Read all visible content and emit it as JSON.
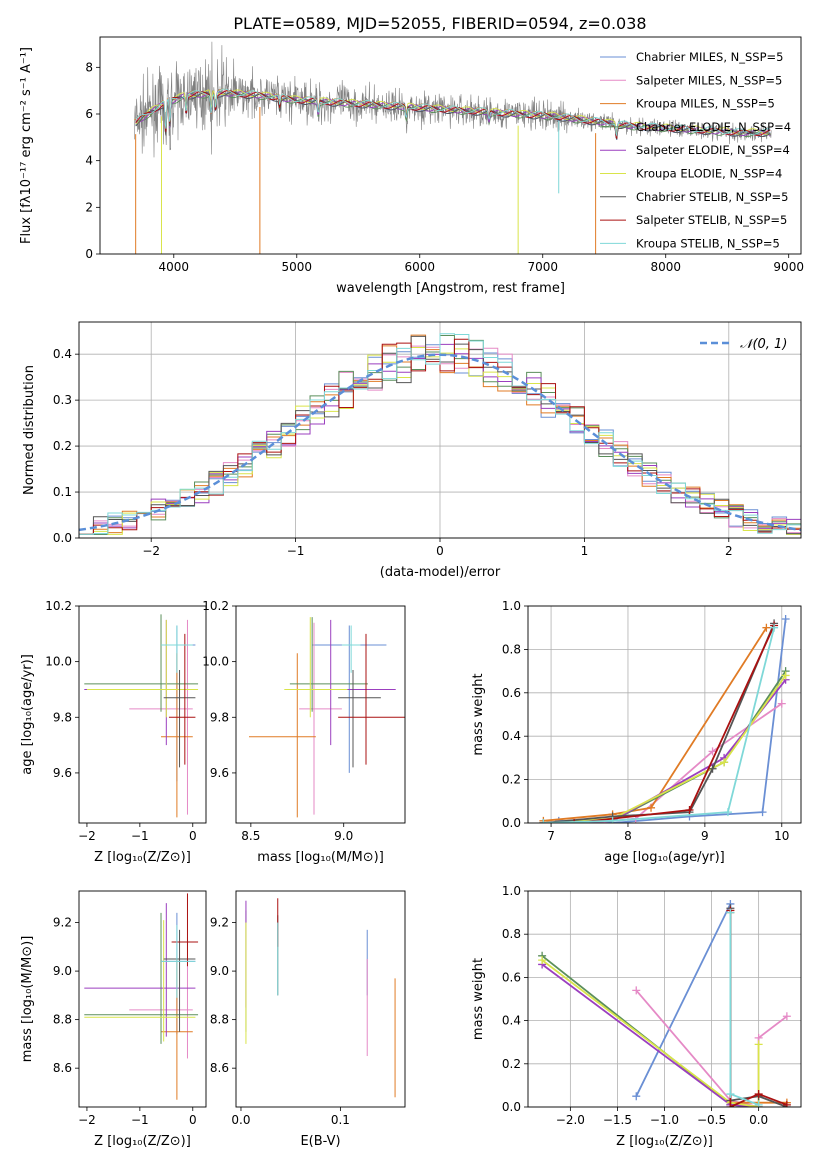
{
  "chart_data": [
    {
      "type": "line",
      "title": "PLATE=0589, MJD=52055, FIBERID=0594, z=0.038",
      "xlabel": "wavelength [Angstrom, rest frame]",
      "ylabel": "Flux [fλ10⁻¹⁷ erg cm⁻² s⁻¹ A⁻¹]",
      "xlim": [
        3400,
        9100
      ],
      "ylim": [
        0,
        9.3
      ],
      "xticks": [
        "4000",
        "5000",
        "6000",
        "7000",
        "8000",
        "9000"
      ],
      "yticks": [
        "0",
        "2",
        "4",
        "6",
        "8"
      ],
      "legend_position": "top-right",
      "series": [
        {
          "name": "Chabrier MILES, N_SSP=5",
          "color": "#6a8fd4"
        },
        {
          "name": "Salpeter MILES, N_SSP=5",
          "color": "#e58ac6"
        },
        {
          "name": "Kroupa MILES, N_SSP=5",
          "color": "#e07b25"
        },
        {
          "name": "Chabrier ELODIE, N_SSP=4",
          "color": "#5b8f5b"
        },
        {
          "name": "Salpeter ELODIE, N_SSP=4",
          "color": "#9b3fbf"
        },
        {
          "name": "Kroupa ELODIE, N_SSP=4",
          "color": "#d9e44a"
        },
        {
          "name": "Chabrier STELIB, N_SSP=5",
          "color": "#555555"
        },
        {
          "name": "Salpeter STELIB, N_SSP=5",
          "color": "#aa1111"
        },
        {
          "name": "Kroupa STELIB, N_SSP=5",
          "color": "#7fd8d8"
        }
      ],
      "data_color": "#808080",
      "continuum": {
        "x": [
          3680,
          3900,
          4100,
          4400,
          4700,
          5000,
          5300,
          5600,
          5900,
          6200,
          6500,
          6800,
          7100,
          7400,
          7700,
          8000,
          8300,
          8600,
          8850
        ],
        "y": [
          5.6,
          6.4,
          6.8,
          6.9,
          6.8,
          6.6,
          6.5,
          6.4,
          6.3,
          6.2,
          6.1,
          6.0,
          5.9,
          5.7,
          5.5,
          5.4,
          5.3,
          5.2,
          5.2
        ]
      }
    },
    {
      "type": "histogram",
      "xlabel": "(data-model)/error",
      "ylabel": "Normed distribution",
      "xlim": [
        -2.5,
        2.5
      ],
      "ylim": [
        0,
        0.47
      ],
      "xticks": [
        "−2",
        "−1",
        "0",
        "1",
        "2"
      ],
      "yticks": [
        "0.0",
        "0.1",
        "0.2",
        "0.3",
        "0.4"
      ],
      "bin_edges_start": -2.5,
      "bin_width": 0.1,
      "grid": true,
      "legend_position": "top-right",
      "reference_curve": {
        "name": "𝒩(0, 1)",
        "color": "#5b8fd8",
        "style": "dashed"
      }
    },
    {
      "type": "scatter",
      "xlabel": "Z [log₁₀(Z/Z⊙)]",
      "ylabel": "age  [log₁₀(age/yr)]",
      "xlim": [
        -2.15,
        0.25
      ],
      "ylim": [
        9.42,
        10.2
      ],
      "xticks": [
        "−2",
        "−1",
        "0"
      ],
      "yticks": [
        "9.6",
        "9.8",
        "10.0",
        "10.2"
      ],
      "errorbars": [
        {
          "color": "#6a8fd4",
          "x": -0.3,
          "xerr": [
            0.25,
            0.35
          ],
          "y": 10.06,
          "yerr": [
            0.49,
            0.07
          ]
        },
        {
          "color": "#e58ac6",
          "x": -0.1,
          "xerr": [
            1.1,
            0.1
          ],
          "y": 9.83,
          "yerr": [
            0.38,
            0.32
          ]
        },
        {
          "color": "#e07b25",
          "x": -0.3,
          "xerr": [
            0.3,
            0.3
          ],
          "y": 9.73,
          "yerr": [
            0.29,
            0.3
          ]
        },
        {
          "color": "#5b8f5b",
          "x": -0.6,
          "xerr": [
            1.45,
            0.7
          ],
          "y": 9.92,
          "yerr": [
            0.1,
            0.25
          ]
        },
        {
          "color": "#9b3fbf",
          "x": -0.5,
          "xerr": [
            1.55,
            0.55
          ],
          "y": 9.9,
          "yerr": [
            0.2,
            0.25
          ]
        },
        {
          "color": "#d9e44a",
          "x": -0.5,
          "xerr": [
            1.5,
            0.6
          ],
          "y": 9.9,
          "yerr": [
            0.1,
            0.25
          ]
        },
        {
          "color": "#555555",
          "x": -0.25,
          "xerr": [
            0.3,
            0.3
          ],
          "y": 9.87,
          "yerr": [
            0.25,
            0.1
          ]
        },
        {
          "color": "#aa1111",
          "x": -0.15,
          "xerr": [
            0.3,
            0.2
          ],
          "y": 9.8,
          "yerr": [
            0.17,
            0.3
          ]
        },
        {
          "color": "#7fd8d8",
          "x": -0.3,
          "xerr": [
            0.3,
            0.3
          ],
          "y": 10.06,
          "yerr": [
            0.1,
            0.07
          ]
        }
      ]
    },
    {
      "type": "scatter",
      "xlabel": "mass [log₁₀(M/M⊙)]",
      "ylabel": "",
      "xlim": [
        8.42,
        9.33
      ],
      "ylim": [
        9.42,
        10.2
      ],
      "xticks": [
        "8.5",
        "9.0"
      ],
      "yticks": [
        "9.6",
        "9.8",
        "10.0",
        "10.2"
      ],
      "errorbars": [
        {
          "color": "#6a8fd4",
          "x": 9.03,
          "xerr": [
            0.2,
            0.2
          ],
          "y": 10.06,
          "yerr": [
            0.46,
            0.07
          ]
        },
        {
          "color": "#e58ac6",
          "x": 8.84,
          "xerr": [
            0.08,
            0.15
          ],
          "y": 9.83,
          "yerr": [
            0.38,
            0.31
          ]
        },
        {
          "color": "#e07b25",
          "x": 8.75,
          "xerr": [
            0.26,
            0.1
          ],
          "y": 9.73,
          "yerr": [
            0.29,
            0.3
          ]
        },
        {
          "color": "#5b8f5b",
          "x": 8.83,
          "xerr": [
            0.12,
            0.3
          ],
          "y": 9.92,
          "yerr": [
            0.1,
            0.24
          ]
        },
        {
          "color": "#9b3fbf",
          "x": 8.93,
          "xerr": [
            0.1,
            0.35
          ],
          "y": 9.9,
          "yerr": [
            0.2,
            0.25
          ]
        },
        {
          "color": "#d9e44a",
          "x": 8.82,
          "xerr": [
            0.14,
            0.2
          ],
          "y": 9.9,
          "yerr": [
            0.1,
            0.26
          ]
        },
        {
          "color": "#555555",
          "x": 9.05,
          "xerr": [
            0.08,
            0.15
          ],
          "y": 9.87,
          "yerr": [
            0.25,
            0.1
          ]
        },
        {
          "color": "#aa1111",
          "x": 9.12,
          "xerr": [
            0.15,
            0.25
          ],
          "y": 9.8,
          "yerr": [
            0.17,
            0.3
          ]
        },
        {
          "color": "#7fd8d8",
          "x": 9.04,
          "xerr": [
            0.05,
            0.05
          ],
          "y": 10.06,
          "yerr": [
            0.1,
            0.07
          ]
        }
      ]
    },
    {
      "type": "line",
      "xlabel": "age  [log₁₀(age/yr)]",
      "ylabel": "mass weight",
      "xlim": [
        6.7,
        10.25
      ],
      "ylim": [
        0,
        1.0
      ],
      "xticks": [
        "7",
        "8",
        "9",
        "10"
      ],
      "yticks": [
        "0.0",
        "0.2",
        "0.4",
        "0.6",
        "0.8",
        "1.0"
      ],
      "grid": true,
      "lines": [
        {
          "color": "#6a8fd4",
          "x": [
            7.1,
            7.8,
            8.8,
            9.75,
            10.05
          ],
          "y": [
            0.01,
            0.0,
            0.03,
            0.05,
            0.94
          ]
        },
        {
          "color": "#e58ac6",
          "x": [
            6.9,
            7.5,
            8.1,
            9.1,
            10.0
          ],
          "y": [
            0.0,
            0.0,
            0.02,
            0.33,
            0.55
          ]
        },
        {
          "color": "#e07b25",
          "x": [
            6.9,
            7.8,
            8.3,
            9.8
          ],
          "y": [
            0.01,
            0.04,
            0.07,
            0.9
          ]
        },
        {
          "color": "#5b8f5b",
          "x": [
            6.9,
            7.8,
            9.25,
            10.05
          ],
          "y": [
            0.0,
            0.01,
            0.28,
            0.7
          ]
        },
        {
          "color": "#9b3fbf",
          "x": [
            6.9,
            7.8,
            9.25,
            10.05
          ],
          "y": [
            0.0,
            0.01,
            0.3,
            0.66
          ]
        },
        {
          "color": "#d9e44a",
          "x": [
            6.9,
            7.8,
            9.25,
            10.05
          ],
          "y": [
            0.0,
            0.02,
            0.28,
            0.68
          ]
        },
        {
          "color": "#555555",
          "x": [
            6.9,
            7.8,
            8.8,
            9.1,
            9.9
          ],
          "y": [
            0.0,
            0.03,
            0.05,
            0.25,
            0.92
          ]
        },
        {
          "color": "#aa1111",
          "x": [
            7.3,
            8.8,
            9.9
          ],
          "y": [
            0.0,
            0.06,
            0.91
          ]
        },
        {
          "color": "#7fd8d8",
          "x": [
            6.9,
            7.8,
            9.3,
            9.9
          ],
          "y": [
            0.0,
            0.01,
            0.05,
            0.9
          ]
        }
      ]
    },
    {
      "type": "scatter",
      "xlabel": "Z [log₁₀(Z/Z⊙)]",
      "ylabel": "mass [log₁₀(M/M⊙)]",
      "xlim": [
        -2.15,
        0.25
      ],
      "ylim": [
        8.44,
        9.33
      ],
      "xticks": [
        "−2",
        "−1",
        "0"
      ],
      "yticks": [
        "8.6",
        "8.8",
        "9.0",
        "9.2"
      ],
      "errorbars": [
        {
          "color": "#6a8fd4",
          "x": -0.3,
          "xerr": [
            0.3,
            0.35
          ],
          "y": 9.04,
          "yerr": [
            0.3,
            0.2
          ]
        },
        {
          "color": "#e58ac6",
          "x": -0.1,
          "xerr": [
            1.1,
            0.1
          ],
          "y": 8.84,
          "yerr": [
            0.2,
            0.3
          ]
        },
        {
          "color": "#e07b25",
          "x": -0.3,
          "xerr": [
            0.3,
            0.3
          ],
          "y": 8.75,
          "yerr": [
            0.28,
            0.3
          ]
        },
        {
          "color": "#5b8f5b",
          "x": -0.6,
          "xerr": [
            1.45,
            0.7
          ],
          "y": 8.82,
          "yerr": [
            0.12,
            0.42
          ]
        },
        {
          "color": "#9b3fbf",
          "x": -0.5,
          "xerr": [
            1.55,
            0.55
          ],
          "y": 8.93,
          "yerr": [
            0.2,
            0.35
          ]
        },
        {
          "color": "#d9e44a",
          "x": -0.55,
          "xerr": [
            1.5,
            0.6
          ],
          "y": 8.81,
          "yerr": [
            0.1,
            0.4
          ]
        },
        {
          "color": "#555555",
          "x": -0.25,
          "xerr": [
            0.3,
            0.3
          ],
          "y": 9.05,
          "yerr": [
            0.3,
            0.12
          ]
        },
        {
          "color": "#aa1111",
          "x": -0.1,
          "xerr": [
            0.3,
            0.2
          ],
          "y": 9.12,
          "yerr": [
            0.1,
            0.2
          ]
        },
        {
          "color": "#7fd8d8",
          "x": -0.3,
          "xerr": [
            0.3,
            0.35
          ],
          "y": 9.04,
          "yerr": [
            0.15,
            0.15
          ]
        }
      ]
    },
    {
      "type": "scatter",
      "xlabel": "E(B-V)",
      "ylabel": "",
      "xlim": [
        -0.005,
        0.165
      ],
      "ylim": [
        8.44,
        9.33
      ],
      "xticks": [
        "0.0",
        "0.1"
      ],
      "yticks": [
        "8.6",
        "8.8",
        "9.0",
        "9.2"
      ],
      "errorbars": [
        {
          "color": "#6a8fd4",
          "x": 0.127,
          "yerr_range": [
            8.9,
            9.17
          ]
        },
        {
          "color": "#e58ac6",
          "x": 0.127,
          "yerr_range": [
            8.65,
            9.05
          ]
        },
        {
          "color": "#e07b25",
          "x": 0.155,
          "yerr_range": [
            8.48,
            8.97
          ]
        },
        {
          "color": "#5b8f5b",
          "x": 0.005,
          "yerr_range": [
            8.75,
            9.25
          ]
        },
        {
          "color": "#9b3fbf",
          "x": 0.005,
          "yerr_range": [
            8.85,
            9.29
          ]
        },
        {
          "color": "#d9e44a",
          "x": 0.005,
          "yerr_range": [
            8.7,
            9.2
          ]
        },
        {
          "color": "#555555",
          "x": 0.037,
          "yerr_range": [
            8.9,
            9.23
          ]
        },
        {
          "color": "#aa1111",
          "x": 0.037,
          "yerr_range": [
            9.1,
            9.3
          ]
        },
        {
          "color": "#7fd8d8",
          "x": 0.037,
          "yerr_range": [
            8.9,
            9.2
          ]
        }
      ]
    },
    {
      "type": "line",
      "xlabel": "Z [log₁₀(Z/Z⊙)]",
      "ylabel": "mass weight",
      "xlim": [
        -2.45,
        0.45
      ],
      "ylim": [
        0,
        1.0
      ],
      "xticks": [
        "−2.0",
        "−1.5",
        "−1.0",
        "−0.5",
        "0.0"
      ],
      "yticks": [
        "0.0",
        "0.2",
        "0.4",
        "0.6",
        "0.8",
        "1.0"
      ],
      "grid": true,
      "lines": [
        {
          "color": "#6a8fd4",
          "x": [
            -1.3,
            -0.3,
            -0.3,
            0.0
          ],
          "y": [
            0.05,
            0.94,
            0.01,
            0.0
          ]
        },
        {
          "color": "#e58ac6",
          "x": [
            -1.3,
            -0.3,
            0.0,
            0.0,
            0.3
          ],
          "y": [
            0.54,
            0.03,
            0.0,
            0.32,
            0.42
          ]
        },
        {
          "color": "#e07b25",
          "x": [
            -0.3,
            -0.3,
            0.3
          ],
          "y": [
            0.9,
            0.02,
            0.02
          ]
        },
        {
          "color": "#5b8f5b",
          "x": [
            -2.3,
            -0.3,
            0.0
          ],
          "y": [
            0.7,
            0.01,
            0.0
          ]
        },
        {
          "color": "#9b3fbf",
          "x": [
            -2.3,
            -0.3,
            0.0
          ],
          "y": [
            0.66,
            0.01,
            0.0
          ]
        },
        {
          "color": "#d9e44a",
          "x": [
            -2.3,
            -0.3,
            0.0,
            0.0
          ],
          "y": [
            0.68,
            0.02,
            0.0,
            0.29
          ]
        },
        {
          "color": "#555555",
          "x": [
            -0.3,
            -0.3,
            0.0,
            0.3
          ],
          "y": [
            0.92,
            0.03,
            0.05,
            0.0
          ]
        },
        {
          "color": "#aa1111",
          "x": [
            -0.3,
            -0.3,
            0.0,
            0.3
          ],
          "y": [
            0.91,
            0.0,
            0.06,
            0.01
          ]
        },
        {
          "color": "#7fd8d8",
          "x": [
            -0.3,
            -0.3,
            0.0
          ],
          "y": [
            0.9,
            0.06,
            0.01
          ]
        }
      ]
    }
  ]
}
